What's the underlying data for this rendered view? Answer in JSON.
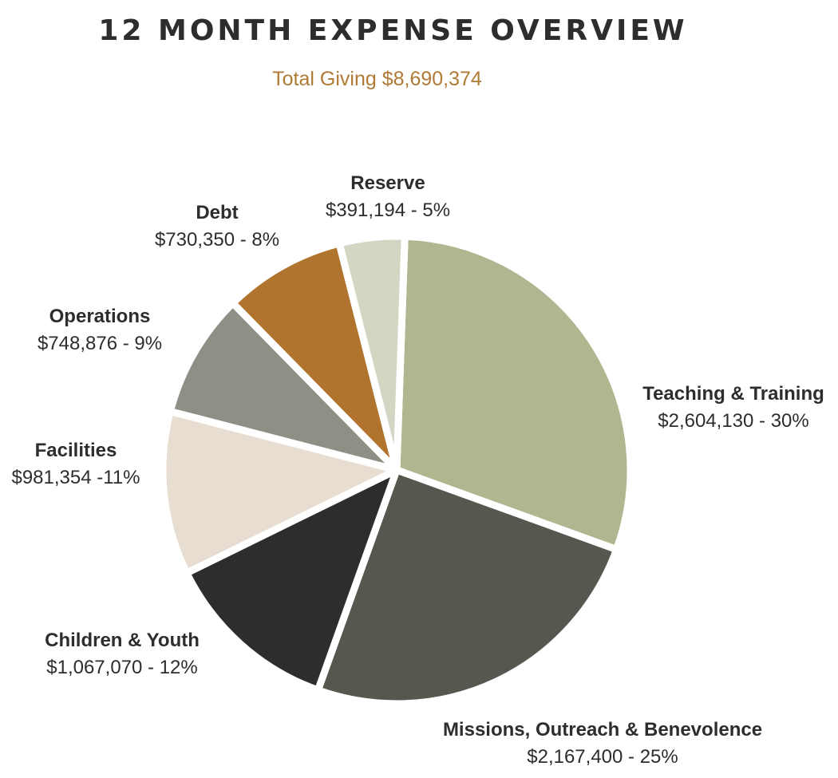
{
  "header": {
    "title": "12 MONTH EXPENSE OVERVIEW",
    "subtitle": "Total Giving $8,690,374"
  },
  "chart_data": {
    "type": "pie",
    "title": "12 MONTH EXPENSE OVERVIEW",
    "subtitle": "Total Giving $8,690,374",
    "slices": [
      {
        "name": "Teaching & Training",
        "value": 2604130,
        "display": "$2,604,130 - 30%",
        "percent": 30,
        "color": "#b0b690"
      },
      {
        "name": "Missions, Outreach & Benevolence",
        "value": 2167400,
        "display": "$2,167,400 - 25%",
        "percent": 25,
        "color": "#575750"
      },
      {
        "name": "Children & Youth",
        "value": 1067070,
        "display": "$1,067,070 - 12%",
        "percent": 12,
        "color": "#2d2d2b"
      },
      {
        "name": "Facilities",
        "value": 981354,
        "display": "$981,354 -11%",
        "percent": 11,
        "color": "#e7ddd0"
      },
      {
        "name": "Operations",
        "value": 748876,
        "display": "$748,876 - 9%",
        "percent": 9,
        "color": "#8f8f86"
      },
      {
        "name": "Debt",
        "value": 730350,
        "display": "$730,350 - 8%",
        "percent": 8,
        "color": "#b0742e"
      },
      {
        "name": "Reserve",
        "value": 391194,
        "display": "$391,194 - 5%",
        "percent": 5,
        "color": "#d4d6c3"
      }
    ]
  }
}
